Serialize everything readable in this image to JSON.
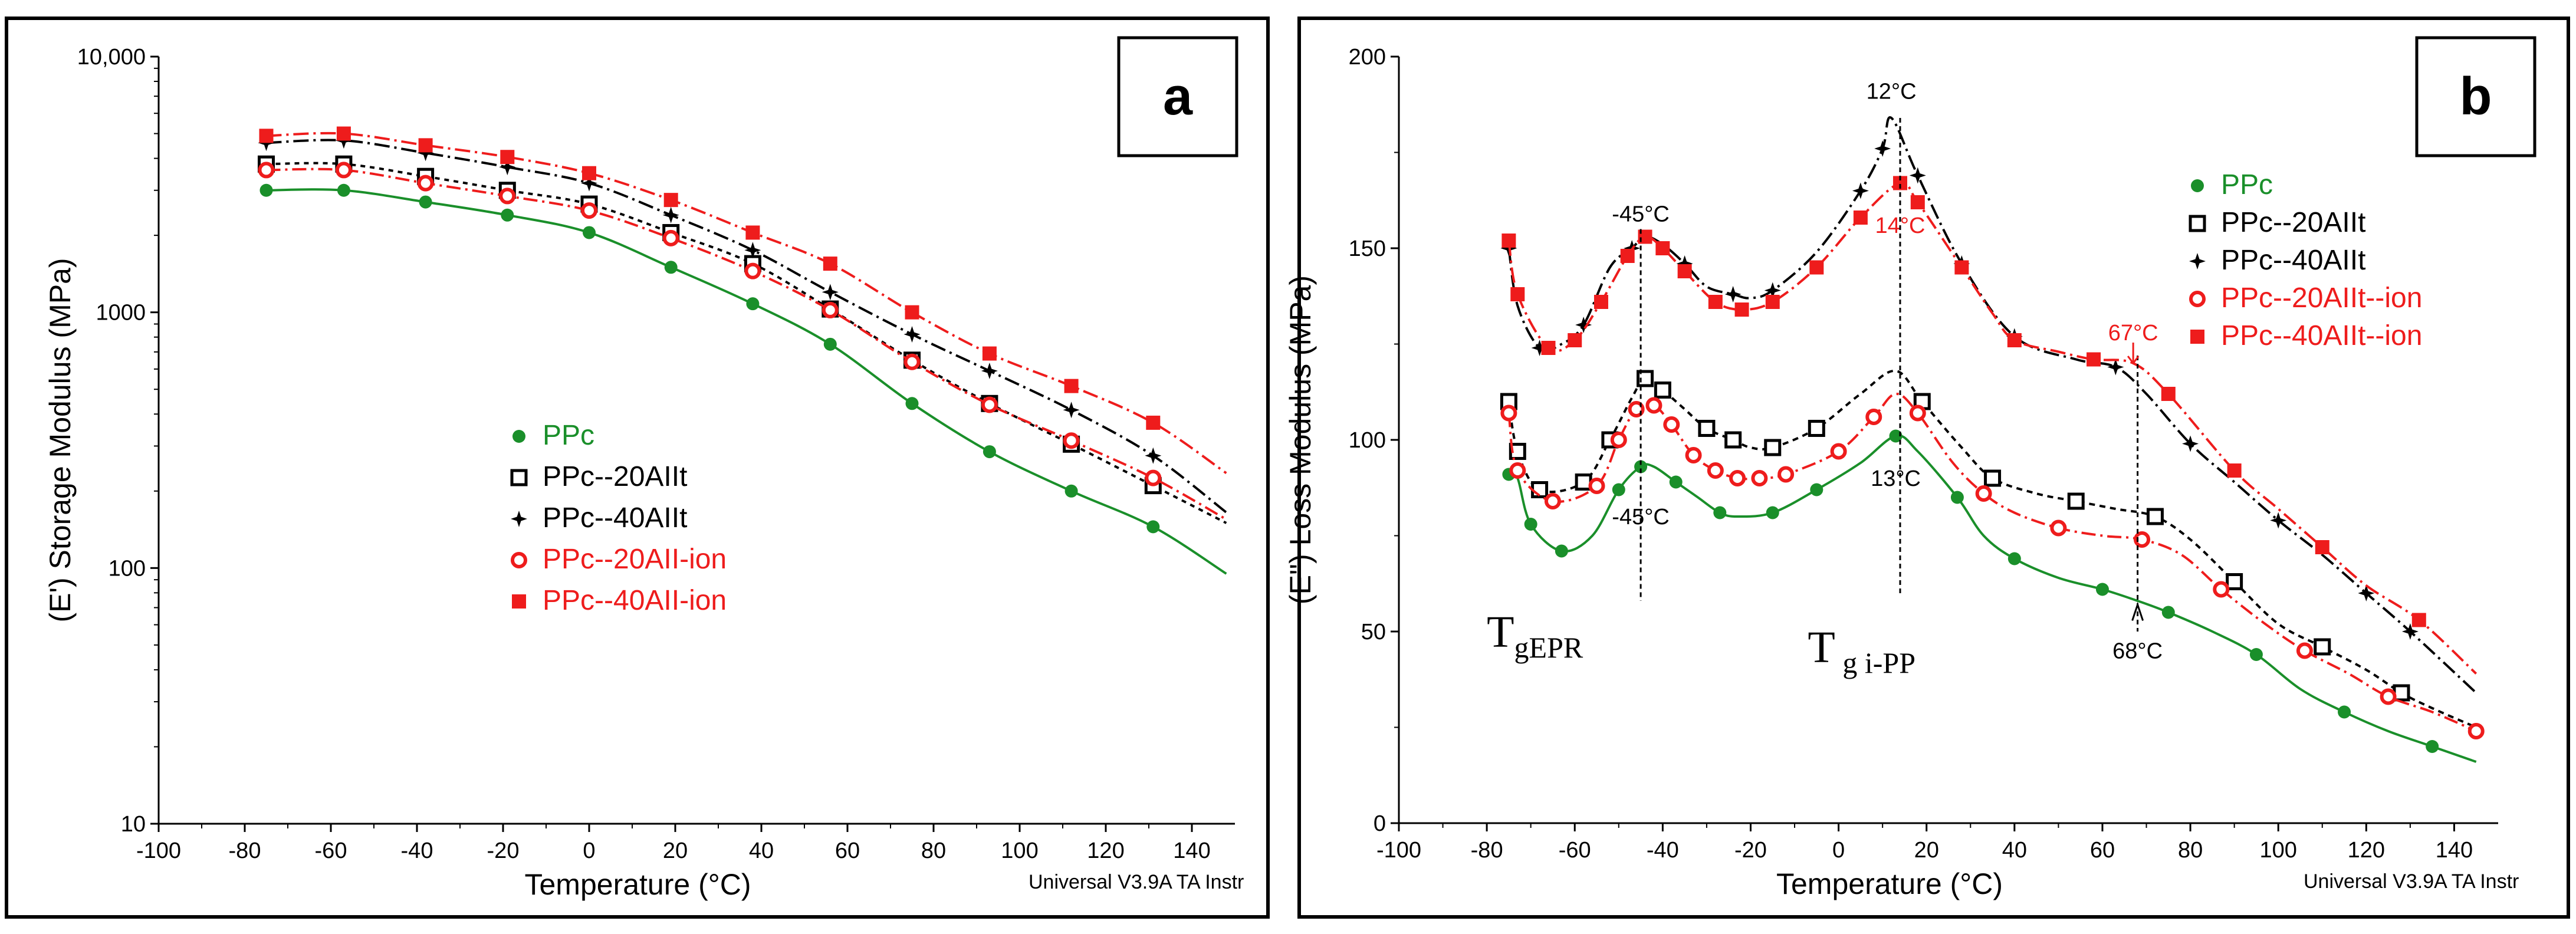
{
  "colors": {
    "ppc": "#1a8f2a",
    "ppc20": "#000000",
    "ppc40": "#000000",
    "ppc20ion": "#ee1c1c",
    "ppc40ion": "#ee1c1c"
  },
  "chart_data": [
    {
      "type": "line",
      "panel_label": "a",
      "title": "",
      "xlabel": "Temperature (°C)",
      "ylabel": "(E') Storage Modulus (MPa)",
      "yscale": "log",
      "xlim": [
        -100,
        150
      ],
      "ylim": [
        10,
        10000
      ],
      "x_ticks": [
        -100,
        -80,
        -60,
        -40,
        -20,
        0,
        20,
        40,
        60,
        80,
        100,
        120,
        140
      ],
      "x_tick_labels": [
        "-100",
        "-80",
        "-60",
        "-40",
        "-20",
        "0",
        "20",
        "40",
        "60",
        "80",
        "100",
        "120",
        "140"
      ],
      "y_ticks": [
        10,
        100,
        1000,
        10000
      ],
      "y_tick_labels": [
        "10",
        "100",
        "1000",
        "10,000"
      ],
      "footer": "Universal V3.9A TA Instr",
      "legend_position": "center-left",
      "series": [
        {
          "name": "PPc",
          "marker": "filled-circle",
          "color_key": "ppc",
          "dash": "solid",
          "legend_color": "#1a8f2a",
          "x": [
            -75,
            -57,
            -38,
            -19,
            0,
            19,
            38,
            56,
            75,
            93,
            112,
            131,
            148
          ],
          "y": [
            3000,
            3000,
            2700,
            2400,
            2050,
            1500,
            1080,
            750,
            440,
            285,
            200,
            145,
            95
          ],
          "marker_idx": [
            0,
            1,
            2,
            3,
            4,
            5,
            6,
            7,
            8,
            9,
            10,
            11
          ]
        },
        {
          "name": "PPc--20AIIt",
          "marker": "open-square",
          "color_key": "ppc20",
          "dash": "8,8",
          "legend_color": "#000000",
          "x": [
            -75,
            -57,
            -38,
            -19,
            0,
            19,
            38,
            56,
            75,
            93,
            112,
            131,
            148
          ],
          "y": [
            3800,
            3800,
            3400,
            3000,
            2650,
            2050,
            1550,
            1030,
            650,
            440,
            305,
            210,
            150
          ],
          "marker_idx": [
            0,
            1,
            2,
            3,
            4,
            5,
            6,
            7,
            8,
            9,
            10,
            11
          ]
        },
        {
          "name": "PPc--40AIIt",
          "marker": "star",
          "color_key": "ppc40",
          "dash": "26,8,4,8",
          "legend_color": "#000000",
          "x": [
            -75,
            -57,
            -38,
            -19,
            0,
            19,
            38,
            56,
            75,
            93,
            112,
            131,
            148
          ],
          "y": [
            4600,
            4700,
            4200,
            3700,
            3200,
            2400,
            1750,
            1200,
            820,
            590,
            415,
            275,
            165
          ],
          "marker_idx": [
            0,
            1,
            2,
            3,
            4,
            5,
            6,
            7,
            8,
            9,
            10,
            11
          ]
        },
        {
          "name": "PPc--20AII-ion",
          "marker": "open-circle",
          "color_key": "ppc20ion",
          "dash": "24,8,4,8",
          "legend_color": "#ee1c1c",
          "x": [
            -75,
            -57,
            -38,
            -19,
            0,
            19,
            38,
            56,
            75,
            93,
            112,
            131,
            148
          ],
          "y": [
            3600,
            3600,
            3200,
            2850,
            2500,
            1950,
            1450,
            1020,
            640,
            435,
            315,
            225,
            155
          ],
          "marker_idx": [
            0,
            1,
            2,
            3,
            4,
            5,
            6,
            7,
            8,
            9,
            10,
            11
          ]
        },
        {
          "name": "PPc--40AII-ion",
          "marker": "filled-square",
          "color_key": "ppc40ion",
          "dash": "26,8,4,8",
          "legend_color": "#ee1c1c",
          "x": [
            -75,
            -57,
            -38,
            -19,
            0,
            19,
            38,
            56,
            75,
            93,
            112,
            131,
            148
          ],
          "y": [
            4900,
            5000,
            4500,
            4050,
            3500,
            2750,
            2050,
            1550,
            1000,
            690,
            515,
            370,
            235
          ],
          "marker_idx": [
            0,
            1,
            2,
            3,
            4,
            5,
            6,
            7,
            8,
            9,
            10,
            11
          ]
        }
      ]
    },
    {
      "type": "line",
      "panel_label": "b",
      "title": "",
      "xlabel": "Temperature (°C)",
      "ylabel": "(E'') Loss Modulus (MPa)",
      "yscale": "linear",
      "xlim": [
        -100,
        150
      ],
      "ylim": [
        0,
        200
      ],
      "x_ticks": [
        -100,
        -80,
        -60,
        -40,
        -20,
        0,
        20,
        40,
        60,
        80,
        100,
        120,
        140
      ],
      "x_tick_labels": [
        "-100",
        "-80",
        "-60",
        "-40",
        "-20",
        "0",
        "20",
        "40",
        "60",
        "80",
        "100",
        "120",
        "140"
      ],
      "y_ticks": [
        0,
        50,
        100,
        150,
        200
      ],
      "y_tick_labels": [
        "0",
        "50",
        "100",
        "150",
        "200"
      ],
      "footer": "Universal V3.9A TA Instr",
      "legend_position": "top-right",
      "series": [
        {
          "name": "PPc",
          "marker": "filled-circle",
          "color_key": "ppc",
          "dash": "solid",
          "legend_color": "#1a8f2a",
          "x": [
            -75,
            -73,
            -70,
            -63,
            -56,
            -50,
            -45,
            -42,
            -37,
            -32,
            -27,
            -23,
            -15,
            -5,
            5,
            13,
            18,
            27,
            33,
            40,
            50,
            60,
            68,
            75,
            85,
            95,
            105,
            115,
            125,
            135,
            145
          ],
          "y": [
            91,
            90,
            78,
            71,
            75,
            87,
            93,
            93,
            89,
            85,
            81,
            80,
            81,
            87,
            94,
            101,
            97,
            85,
            75,
            69,
            64,
            61,
            58,
            55,
            50,
            44,
            35,
            29,
            24,
            20,
            16
          ],
          "marker_idx": [
            0,
            2,
            3,
            5,
            6,
            8,
            10,
            12,
            13,
            15,
            17,
            19,
            21,
            23,
            25,
            27,
            29
          ]
        },
        {
          "name": "PPc--20AIIt",
          "marker": "open-square",
          "color_key": "ppc20",
          "dash": "10,8",
          "legend_color": "#000000",
          "x": [
            -75,
            -73,
            -68,
            -58,
            -52,
            -47,
            -44,
            -40,
            -35,
            -30,
            -24,
            -20,
            -15,
            -5,
            5,
            13,
            19,
            28,
            35,
            45,
            54,
            63,
            72,
            80,
            90,
            100,
            110,
            120,
            128,
            135,
            145
          ],
          "y": [
            110,
            97,
            87,
            89,
            100,
            111,
            116,
            113,
            108,
            103,
            100,
            98,
            98,
            103,
            112,
            118,
            110,
            98,
            90,
            86,
            84,
            82,
            80,
            74,
            63,
            52,
            46,
            40,
            34,
            30,
            25
          ],
          "marker_idx": [
            0,
            1,
            2,
            3,
            4,
            6,
            7,
            9,
            10,
            12,
            13,
            16,
            18,
            20,
            22,
            24,
            26,
            28
          ]
        },
        {
          "name": "PPc--40AIIt",
          "marker": "star",
          "color_key": "ppc40",
          "dash": "26,8,4,8",
          "legend_color": "#000000",
          "x": [
            -75,
            -73,
            -68,
            -63,
            -58,
            -52,
            -47,
            -44,
            -40,
            -35,
            -30,
            -24,
            -20,
            -15,
            -5,
            5,
            10,
            12,
            18,
            28,
            40,
            54,
            63,
            70,
            80,
            90,
            100,
            110,
            120,
            130,
            145
          ],
          "y": [
            150,
            135,
            124,
            125,
            130,
            145,
            150,
            153,
            151,
            146,
            140,
            138,
            137,
            139,
            149,
            165,
            176,
            184,
            169,
            146,
            127,
            121,
            119,
            112,
            99,
            89,
            79,
            70,
            60,
            50,
            34
          ],
          "marker_idx": [
            0,
            2,
            4,
            6,
            9,
            11,
            13,
            15,
            16,
            18,
            19,
            20,
            22,
            24,
            26,
            28,
            29
          ]
        },
        {
          "name": "PPc--20AIIt--ion",
          "marker": "open-circle",
          "color_key": "ppc20ion",
          "dash": "24,8,4,8",
          "legend_color": "#ee1c1c",
          "x": [
            -75,
            -73,
            -65,
            -55,
            -50,
            -46,
            -42,
            -38,
            -33,
            -28,
            -23,
            -18,
            -12,
            0,
            8,
            13,
            18,
            26,
            33,
            40,
            50,
            60,
            69,
            78,
            87,
            97,
            106,
            116,
            125,
            135,
            145
          ],
          "y": [
            107,
            92,
            84,
            88,
            100,
            108,
            109,
            104,
            96,
            92,
            90,
            90,
            91,
            97,
            106,
            112,
            107,
            94,
            86,
            81,
            77,
            75,
            74,
            70,
            61,
            52,
            45,
            39,
            33,
            29,
            24
          ],
          "marker_idx": [
            0,
            1,
            2,
            3,
            4,
            5,
            6,
            7,
            8,
            9,
            10,
            11,
            12,
            13,
            14,
            16,
            18,
            20,
            22,
            24,
            26,
            28,
            30
          ]
        },
        {
          "name": "PPc--40AIIt--ion",
          "marker": "filled-square",
          "color_key": "ppc40ion",
          "dash": "26,8,4,8",
          "legend_color": "#ee1c1c",
          "x": [
            -75,
            -73,
            -66,
            -60,
            -54,
            -48,
            -44,
            -40,
            -35,
            -28,
            -22,
            -15,
            -5,
            5,
            14,
            18,
            28,
            35,
            40,
            50,
            58,
            67,
            75,
            90,
            100,
            110,
            120,
            132,
            145
          ],
          "y": [
            152,
            138,
            124,
            126,
            136,
            148,
            153,
            150,
            144,
            136,
            134,
            136,
            145,
            158,
            167,
            162,
            145,
            133,
            126,
            123,
            121,
            120,
            112,
            92,
            82,
            72,
            62,
            53,
            39
          ],
          "marker_idx": [
            0,
            1,
            2,
            3,
            4,
            5,
            6,
            7,
            8,
            9,
            10,
            11,
            12,
            13,
            14,
            15,
            16,
            18,
            20,
            22,
            23,
            25,
            27
          ]
        }
      ],
      "annotations": [
        {
          "text": "12°C",
          "color": "#000000"
        },
        {
          "text": "-45°C",
          "color": "#000000"
        },
        {
          "text": "14°C",
          "color": "#ee1c1c"
        },
        {
          "text": "67°C",
          "color": "#ee1c1c"
        },
        {
          "text": "-45°C",
          "color": "#000000"
        },
        {
          "text": "13°C",
          "color": "#000000"
        },
        {
          "text": "68°C",
          "color": "#000000"
        }
      ],
      "tg_labels": [
        {
          "main": "T",
          "sub": "gEPR"
        },
        {
          "main": "T",
          "sub": "g i-PP"
        }
      ]
    }
  ]
}
